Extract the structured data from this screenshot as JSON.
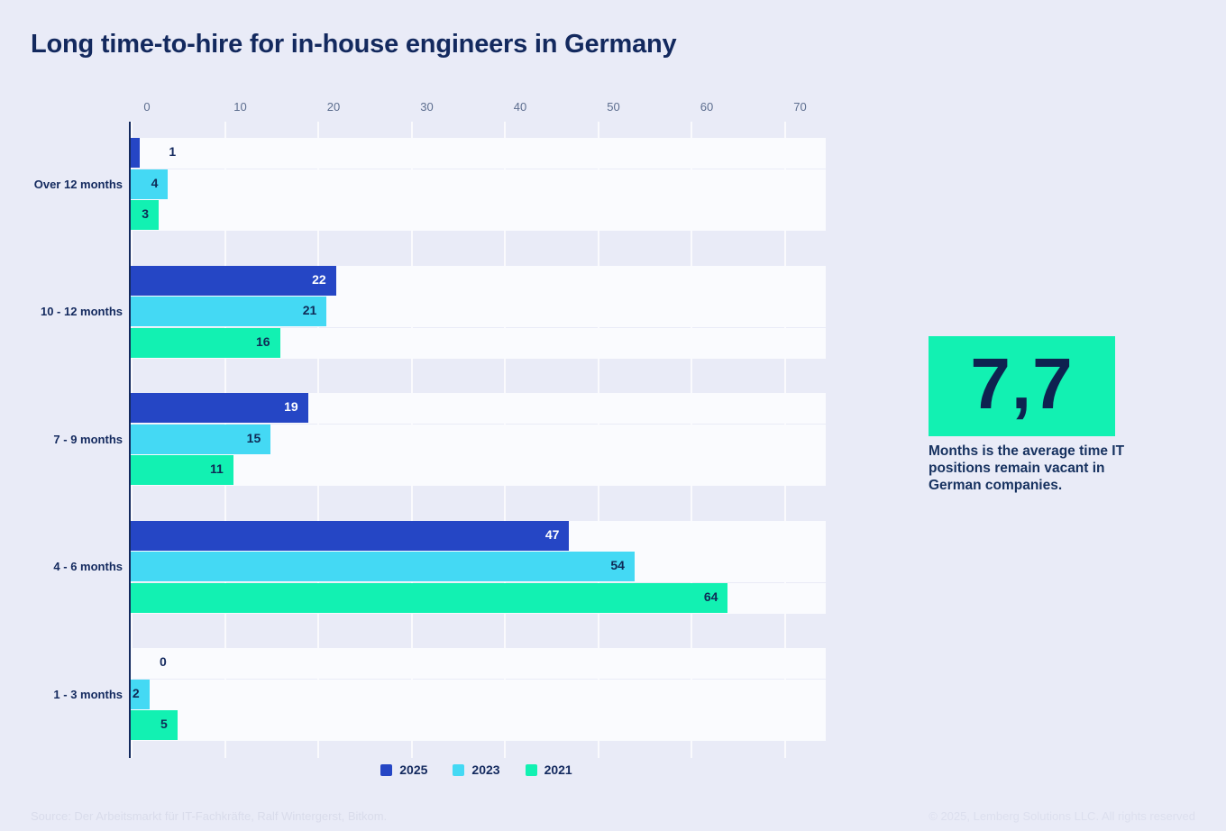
{
  "title": "Long time-to-hire for in-house engineers in Germany",
  "chart_data": {
    "type": "bar",
    "orientation": "horizontal",
    "title": "Long time-to-hire for in-house engineers in Germany",
    "categories": [
      "Over 12 months",
      "10 - 12 months",
      "7 - 9 months",
      "4 - 6 months",
      "1 - 3 months"
    ],
    "series": [
      {
        "name": "2025",
        "color": "#2546c5",
        "label_color": "#ffffff",
        "values": [
          1,
          22,
          19,
          47,
          0
        ]
      },
      {
        "name": "2023",
        "color": "#44d9f4",
        "label_color": "#0f2a56",
        "values": [
          4,
          21,
          15,
          54,
          2
        ]
      },
      {
        "name": "2021",
        "color": "#12f1b2",
        "label_color": "#0f2a56",
        "values": [
          3,
          16,
          11,
          64,
          5
        ]
      }
    ],
    "x_ticks": [
      0,
      10,
      20,
      30,
      40,
      50,
      60,
      70
    ],
    "xlim": [
      0,
      74.5
    ],
    "xlabel": "",
    "ylabel": "",
    "grid": true,
    "legend_position": "bottom",
    "value_labels": true
  },
  "callout": {
    "value": "7,7",
    "description": "Months is the average time IT positions remain vacant in German companies.",
    "accent_color": "#12f1b2"
  },
  "footer": {
    "source": "Source: Der Arbeitsmarkt für IT-Fachkräfte, Ralf Wintergerst, Bitkom.",
    "copyright": "© 2025, Lemberg Solutions LLC. All rights reserved"
  },
  "colors": {
    "background": "#e9ebf7",
    "track": "#fafbfe",
    "navy": "#13295e",
    "tick_text": "#5d6e8f",
    "footer_text": "#d9dceb"
  }
}
